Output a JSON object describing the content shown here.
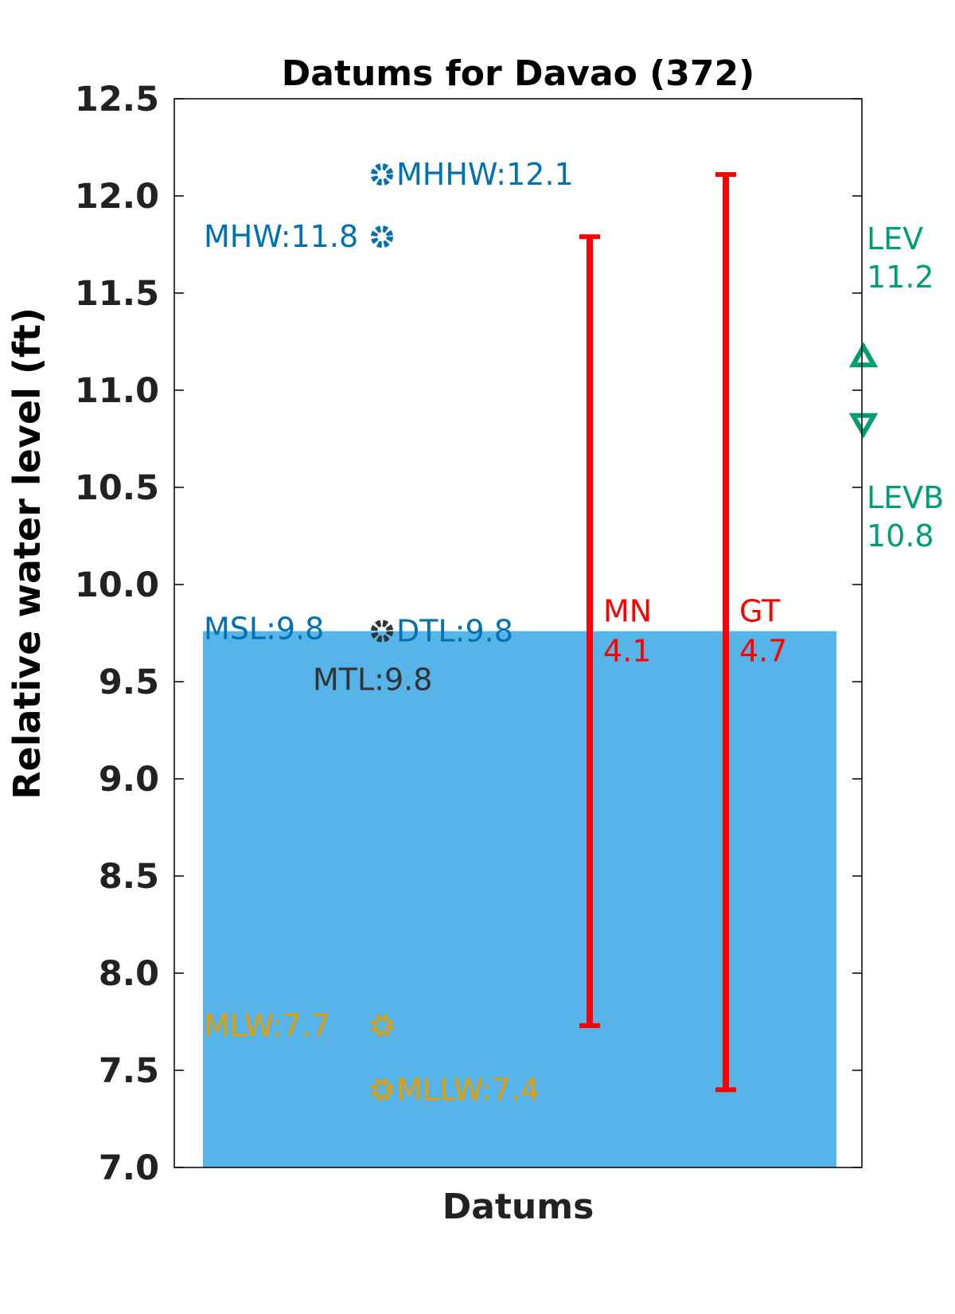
{
  "chart_data": {
    "type": "bar",
    "title": "Datums for Davao (372)",
    "xlabel": "Datums",
    "ylabel": "Relative water level (ft)",
    "ylim": [
      7.0,
      12.5
    ],
    "yticks": [
      "7.0",
      "7.5",
      "8.0",
      "8.5",
      "9.0",
      "9.5",
      "10.0",
      "10.5",
      "11.0",
      "11.5",
      "12.0",
      "12.5"
    ],
    "grid": false,
    "legend": "none",
    "bar": {
      "name": "MSL",
      "value": 9.76,
      "color": "#56b4e9"
    },
    "points": [
      {
        "name": "MHHW",
        "value": 12.11,
        "label": "MHHW:12.1",
        "color": "#0072b2",
        "label_side": "right"
      },
      {
        "name": "MHW",
        "value": 11.79,
        "label": "MHW:11.8",
        "color": "#0072b2",
        "label_side": "left"
      },
      {
        "name": "DTL",
        "value": 9.76,
        "label": "DTL:9.8",
        "color": "#0072b2",
        "label_side": "right"
      },
      {
        "name": "MSL",
        "value": 9.76,
        "label": "MSL:9.8",
        "color": "#0072b2",
        "label_side": "left"
      },
      {
        "name": "MTL",
        "value": 9.76,
        "label": "MTL:9.8",
        "color": "#333333",
        "label_side": "below"
      },
      {
        "name": "MLW",
        "value": 7.73,
        "label": "MLW:7.7",
        "color": "#e69f00",
        "label_side": "left"
      },
      {
        "name": "MLLW",
        "value": 7.4,
        "label": "MLLW:7.4",
        "color": "#e69f00",
        "label_side": "right"
      }
    ],
    "ranges": [
      {
        "name": "MN",
        "value_label": "4.1",
        "low": 7.73,
        "high": 11.79,
        "color": "#ff0000"
      },
      {
        "name": "GT",
        "value_label": "4.7",
        "low": 7.4,
        "high": 12.11,
        "color": "#ff0000"
      }
    ],
    "extremes": [
      {
        "name": "LEV",
        "value_label": "11.2",
        "value": 11.17,
        "marker": "triangle-up",
        "color": "#009e73"
      },
      {
        "name": "LEVB",
        "value_label": "10.8",
        "value": 10.83,
        "marker": "triangle-down",
        "color": "#009e73"
      }
    ]
  }
}
